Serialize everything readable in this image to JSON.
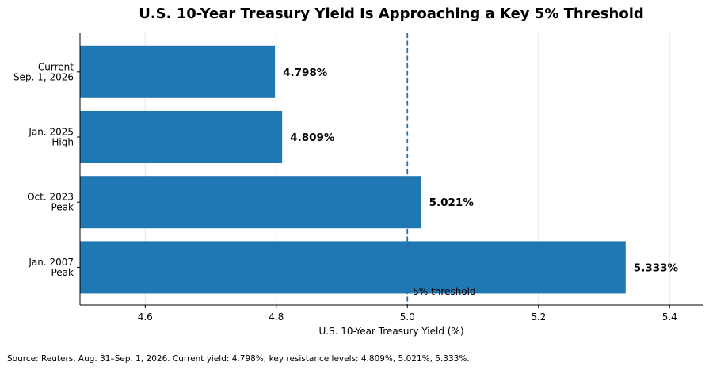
{
  "chart_data": {
    "type": "bar",
    "orientation": "horizontal",
    "title": "U.S. 10-Year Treasury Yield Is Approaching a Key 5% Threshold",
    "xlabel": "U.S. 10-Year Treasury Yield (%)",
    "ylabel": "",
    "xlim": [
      4.5,
      5.5
    ],
    "xticks": [
      4.6,
      4.8,
      5.0,
      5.2,
      5.4
    ],
    "xtick_labels": [
      "4.6",
      "4.8",
      "5.0",
      "5.2",
      "5.4"
    ],
    "grid": "vertical",
    "color": "#1f77b4",
    "categories": [
      [
        "Current",
        "Sep. 1, 2026"
      ],
      [
        "Jan. 2025",
        "High"
      ],
      [
        "Oct. 2023",
        "Peak"
      ],
      [
        "Jan. 2007",
        "Peak"
      ]
    ],
    "values": [
      4.798,
      4.809,
      5.021,
      5.333
    ],
    "data_labels": [
      "4.798%",
      "4.809%",
      "5.021%",
      "5.333%"
    ],
    "reference_line": {
      "value": 5.0,
      "label": "5% threshold",
      "style": "dashed"
    },
    "source": "Source: Reuters, Aug. 31–Sep. 1, 2026. Current yield: 4.798%; key resistance levels: 4.809%, 5.021%, 5.333%."
  }
}
